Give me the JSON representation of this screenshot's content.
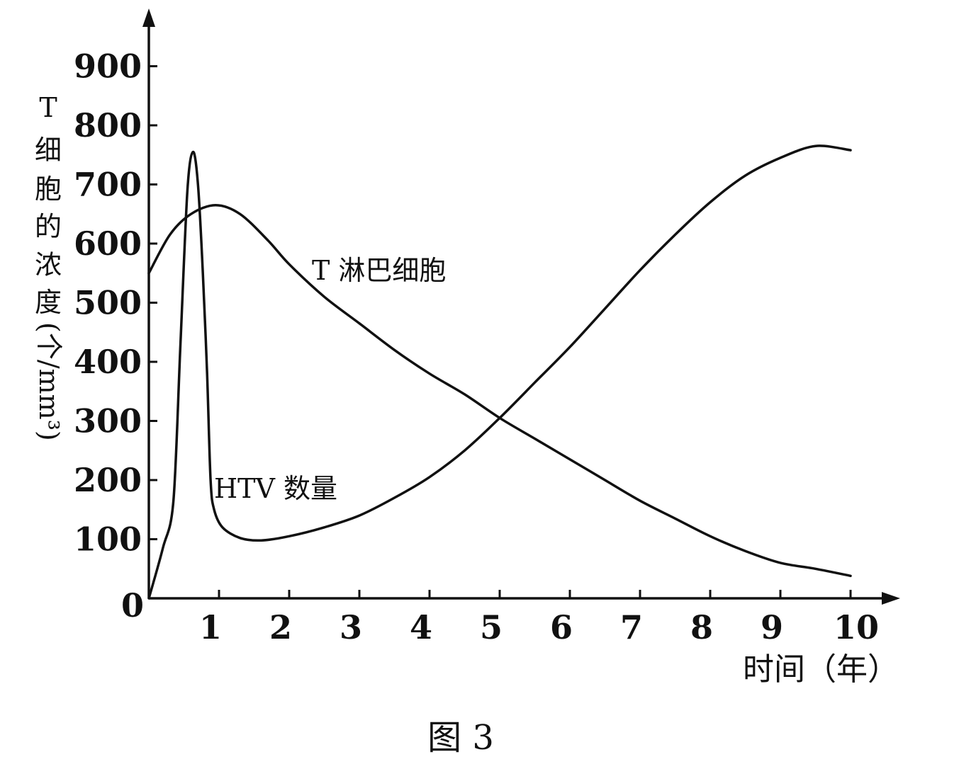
{
  "chart_data": {
    "type": "line",
    "xlabel": "时间（年）",
    "ylabel": "T细胞的浓度(个/mm³)",
    "ylabel_chars": [
      "T",
      "细",
      "胞",
      "的",
      "浓",
      "度",
      "(个/mm³)"
    ],
    "caption": "图 3",
    "x_ticks": [
      "1",
      "2",
      "3",
      "4",
      "5",
      "6",
      "7",
      "8",
      "9",
      "10"
    ],
    "y_ticks": [
      "0",
      "100",
      "200",
      "300",
      "400",
      "500",
      "600",
      "700",
      "800",
      "900"
    ],
    "xlim": [
      0,
      10
    ],
    "ylim": [
      0,
      900
    ],
    "series": [
      {
        "name": "T 淋巴细胞",
        "points": [
          [
            0,
            550
          ],
          [
            0.3,
            615
          ],
          [
            0.6,
            650
          ],
          [
            0.95,
            665
          ],
          [
            1.3,
            650
          ],
          [
            1.7,
            605
          ],
          [
            2.0,
            565
          ],
          [
            2.5,
            510
          ],
          [
            3.0,
            465
          ],
          [
            3.5,
            420
          ],
          [
            4.0,
            380
          ],
          [
            4.5,
            345
          ],
          [
            5.0,
            305
          ],
          [
            5.5,
            270
          ],
          [
            6.0,
            235
          ],
          [
            6.5,
            200
          ],
          [
            7.0,
            165
          ],
          [
            7.5,
            135
          ],
          [
            8.0,
            105
          ],
          [
            8.5,
            80
          ],
          [
            9.0,
            60
          ],
          [
            9.5,
            50
          ],
          [
            10.0,
            38
          ]
        ]
      },
      {
        "name": "HTV 数量",
        "points": [
          [
            0,
            0
          ],
          [
            0.2,
            85
          ],
          [
            0.35,
            165
          ],
          [
            0.45,
            430
          ],
          [
            0.55,
            690
          ],
          [
            0.63,
            755
          ],
          [
            0.7,
            700
          ],
          [
            0.77,
            550
          ],
          [
            0.83,
            380
          ],
          [
            0.88,
            200
          ],
          [
            0.93,
            150
          ],
          [
            1.05,
            120
          ],
          [
            1.3,
            102
          ],
          [
            1.6,
            98
          ],
          [
            2.0,
            105
          ],
          [
            2.5,
            120
          ],
          [
            3.0,
            140
          ],
          [
            3.5,
            170
          ],
          [
            4.0,
            205
          ],
          [
            4.5,
            250
          ],
          [
            5.0,
            305
          ],
          [
            5.5,
            365
          ],
          [
            6.0,
            425
          ],
          [
            6.5,
            490
          ],
          [
            7.0,
            555
          ],
          [
            7.5,
            615
          ],
          [
            8.0,
            670
          ],
          [
            8.5,
            715
          ],
          [
            9.0,
            745
          ],
          [
            9.5,
            765
          ],
          [
            10.0,
            758
          ]
        ]
      }
    ],
    "annotations": [
      {
        "text": "T 淋巴细胞",
        "series": 0
      },
      {
        "text": "HTV 数量",
        "series": 1
      }
    ]
  }
}
